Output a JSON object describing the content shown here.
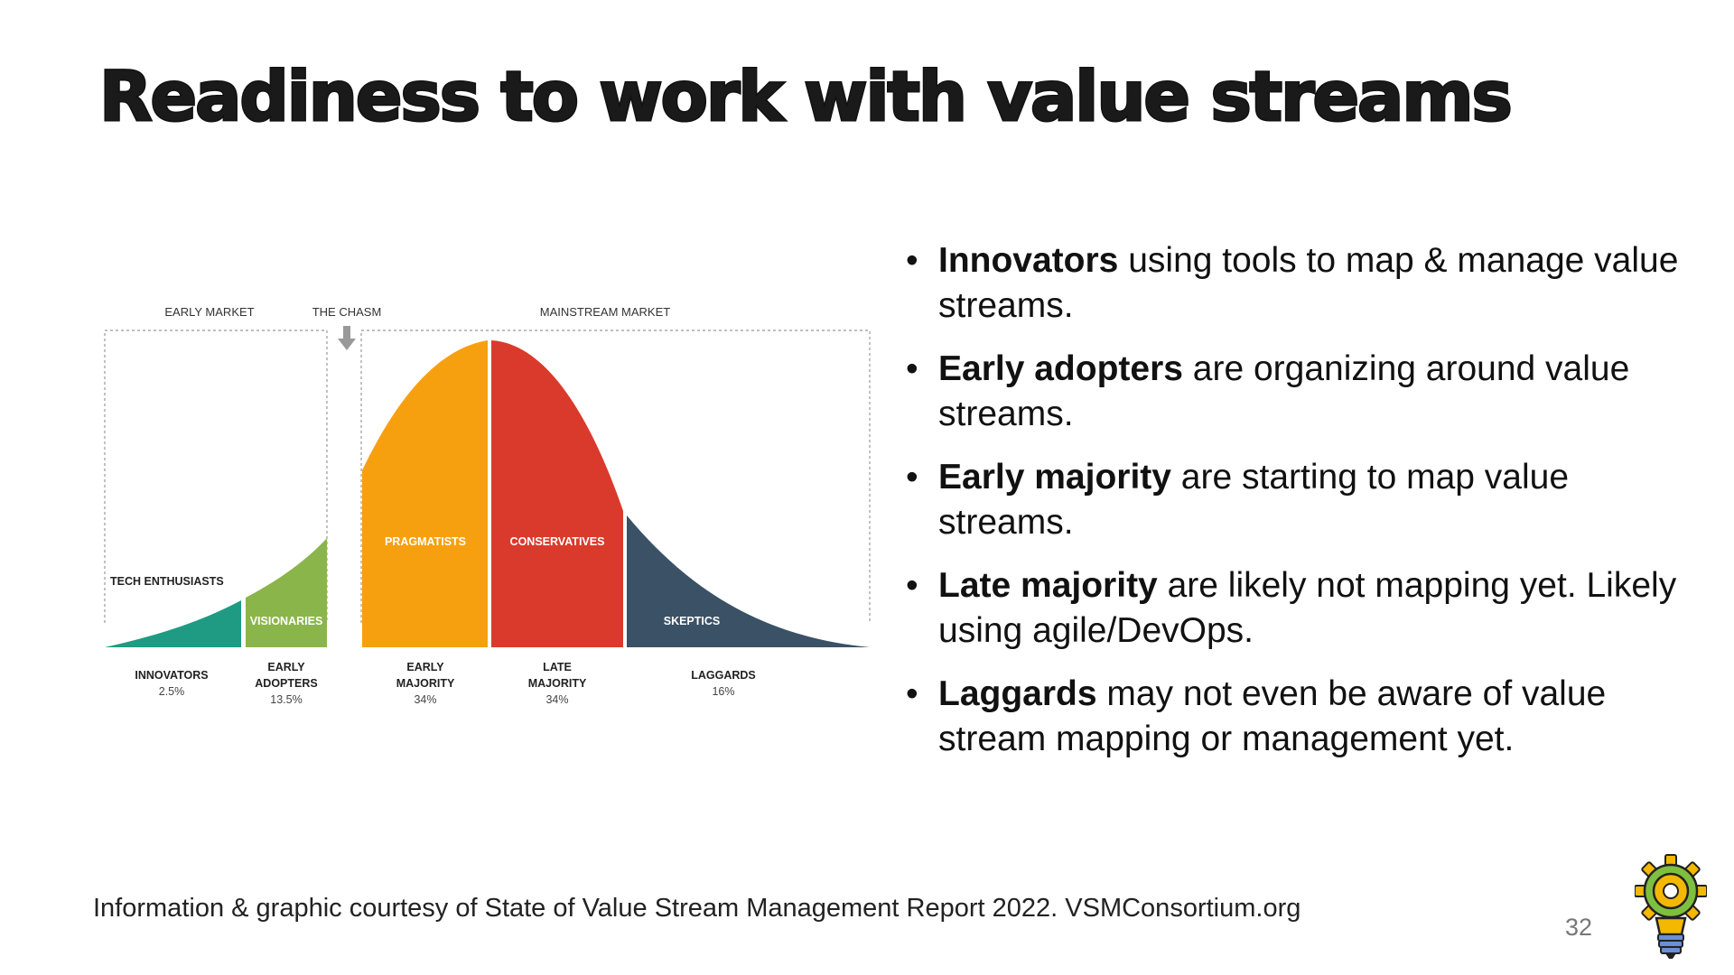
{
  "slide": {
    "title": "Readiness to work with value streams",
    "footer": "Information & graphic courtesy of State of Value Stream Management Report 2022. VSMConsortium.org",
    "page_number": "32"
  },
  "diagram": {
    "headers": {
      "early_market": "EARLY MARKET",
      "chasm": "THE CHASM",
      "mainstream": "MAINSTREAM MARKET"
    },
    "segments": [
      {
        "label": "TECH ENTHUSIASTS",
        "group_line1": "INNOVATORS",
        "group_line2": "",
        "percent": "2.5%",
        "color": "#1e9b82"
      },
      {
        "label": "VISIONARIES",
        "group_line1": "EARLY",
        "group_line2": "ADOPTERS",
        "percent": "13.5%",
        "color": "#8ab54a"
      },
      {
        "label": "PRAGMATISTS",
        "group_line1": "EARLY",
        "group_line2": "MAJORITY",
        "percent": "34%",
        "color": "#f7a00f"
      },
      {
        "label": "CONSERVATIVES",
        "group_line1": "LATE",
        "group_line2": "MAJORITY",
        "percent": "34%",
        "color": "#da3a2b"
      },
      {
        "label": "SKEPTICS",
        "group_line1": "LAGGARDS",
        "group_line2": "",
        "percent": "16%",
        "color": "#3b5166"
      }
    ]
  },
  "bullets": [
    {
      "bold": "Innovators",
      "text": " using tools to map & manage value streams."
    },
    {
      "bold": "Early adopters",
      "text": " are organizing around value streams."
    },
    {
      "bold": "Early majority",
      "text": " are starting to map value streams."
    },
    {
      "bold": "Late majority",
      "text": " are likely not mapping yet. Likely using agile/DevOps."
    },
    {
      "bold": "Laggards",
      "text": " may not even be aware of value stream mapping or management yet."
    }
  ],
  "icons": {
    "logo": "lightbulb-gear-icon",
    "chasm_arrow": "arrow-down-icon"
  }
}
